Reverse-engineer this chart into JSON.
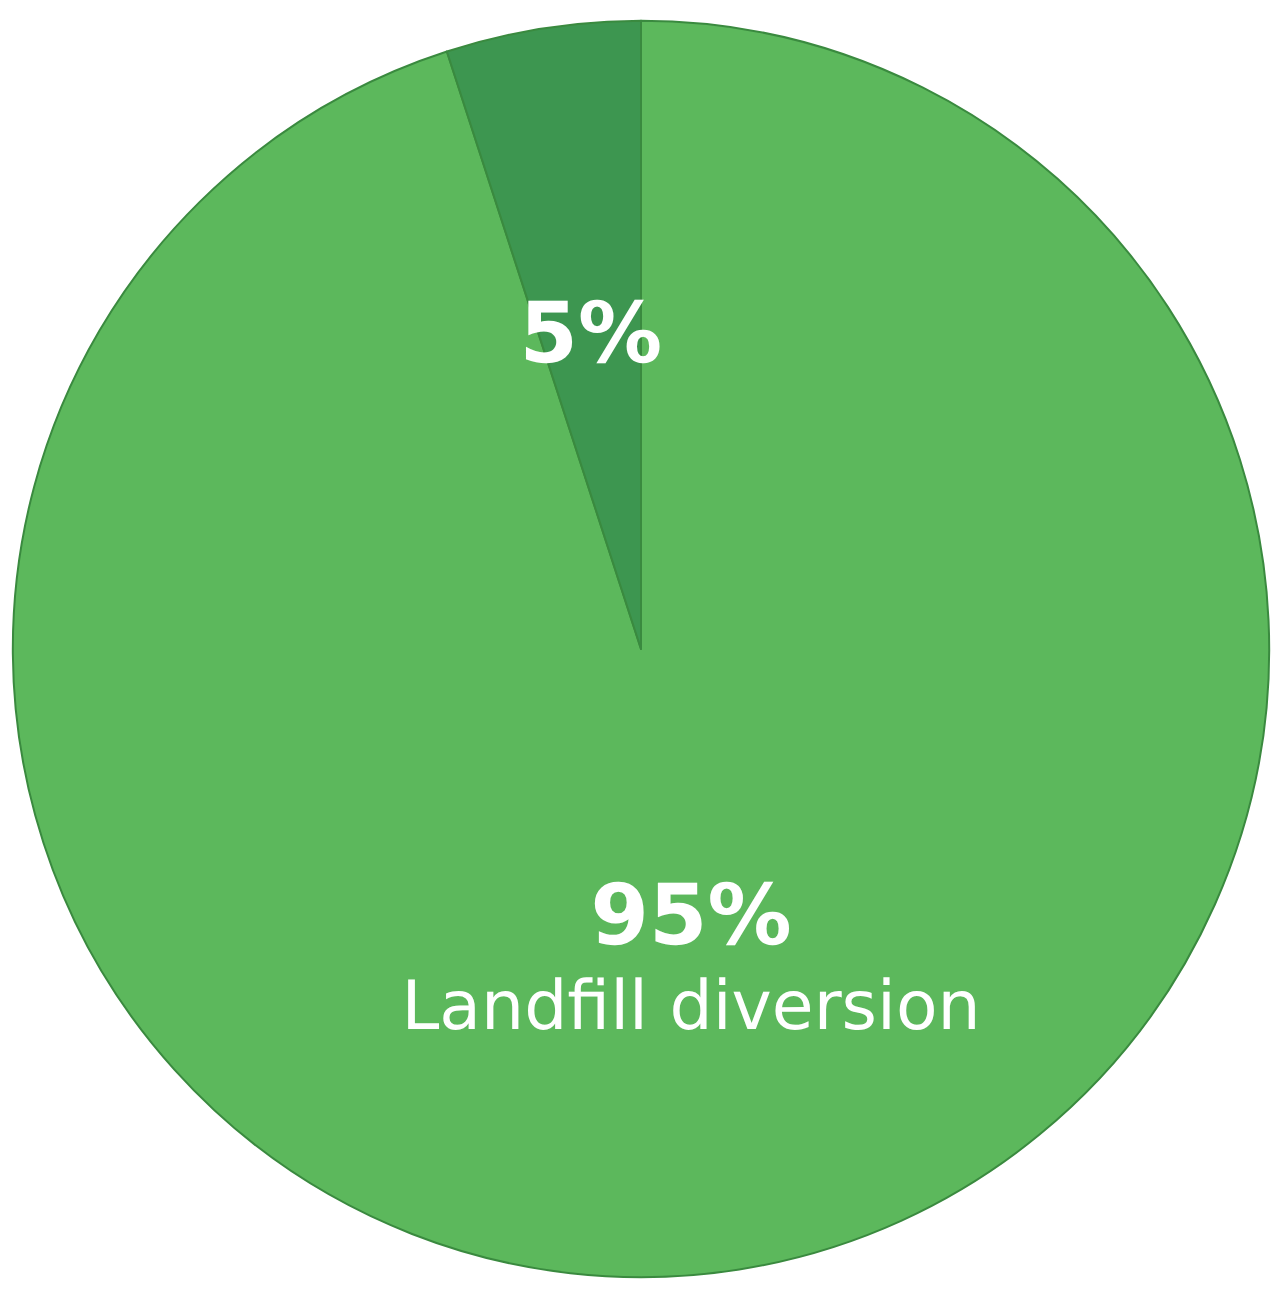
{
  "chart_data": {
    "type": "pie",
    "categories": [
      "Landfill diversion",
      null
    ],
    "values": [
      95,
      5
    ],
    "colors": [
      "#5cb85c",
      "#3d9650"
    ],
    "value_labels": [
      "95%",
      "5%"
    ],
    "legend": false
  }
}
